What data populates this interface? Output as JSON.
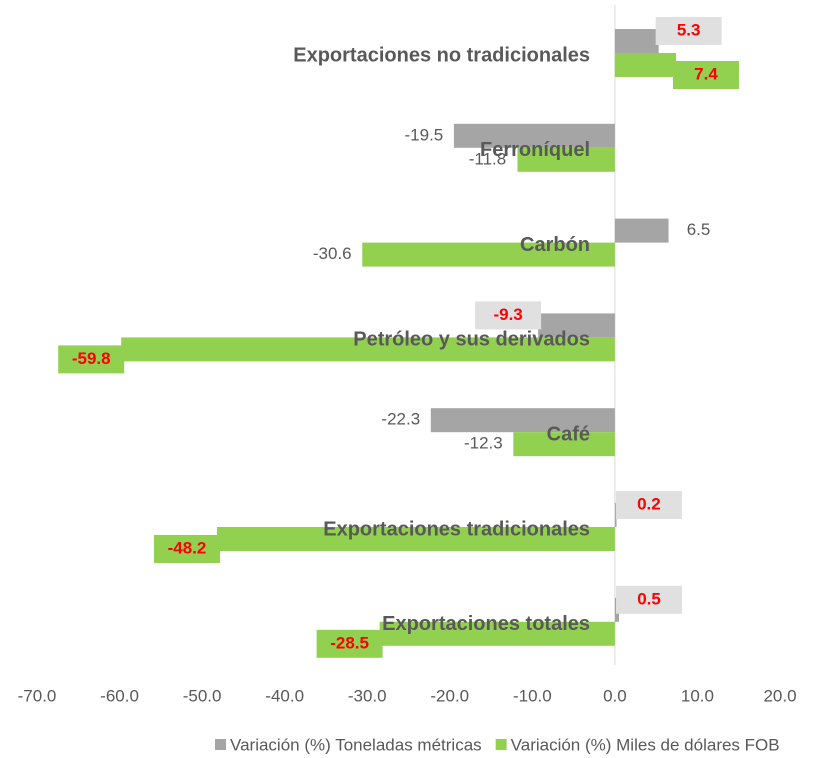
{
  "chart_data": {
    "type": "hbar",
    "categories": [
      "Exportaciones no tradicionales",
      "Ferroníquel",
      "Carbón",
      "Petróleo y sus derivados",
      "Café",
      "Exportaciones tradicionales",
      "Exportaciones totales"
    ],
    "series": [
      {
        "name": "Variación (%) Toneladas métricas",
        "color": "#a5a5a5",
        "values": [
          5.3,
          -19.5,
          6.5,
          -9.3,
          -22.3,
          0.2,
          0.5
        ]
      },
      {
        "name": "Variación (%) Miles de dólares FOB",
        "color": "#92d050",
        "values": [
          7.4,
          -11.8,
          -30.6,
          -59.8,
          -12.3,
          -48.2,
          -28.5
        ]
      }
    ],
    "xlim": [
      -70,
      20
    ],
    "xticks": [
      {
        "value": -70,
        "label": "-70.0"
      },
      {
        "value": -60,
        "label": "-60.0"
      },
      {
        "value": -50,
        "label": "-50.0"
      },
      {
        "value": -40,
        "label": "-40.0"
      },
      {
        "value": -30,
        "label": "-30.0"
      },
      {
        "value": -20,
        "label": "-20.0"
      },
      {
        "value": -10,
        "label": "-10.0"
      },
      {
        "value": 0,
        "label": "0.0"
      },
      {
        "value": 10,
        "label": "10.0"
      },
      {
        "value": 20,
        "label": "20.0"
      }
    ],
    "legend": "bottom"
  }
}
